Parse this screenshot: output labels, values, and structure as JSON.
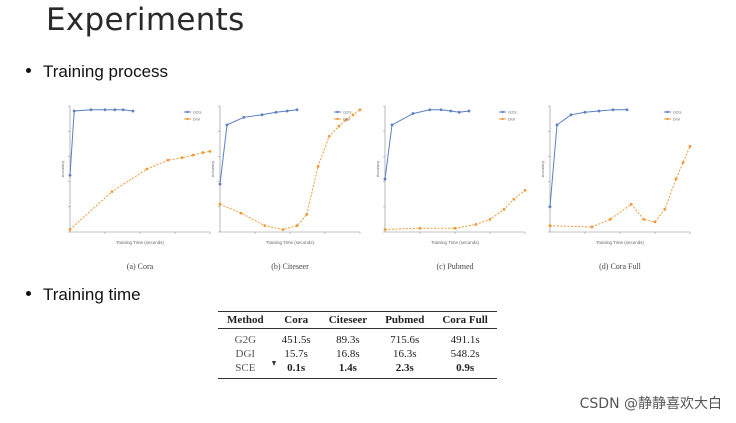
{
  "slide": {
    "title": "Experiments",
    "bullet_process": "Training process",
    "bullet_time": "Training time"
  },
  "colors": {
    "series_a": "#5b7fc0",
    "series_b": "#ee9a3a"
  },
  "legend": {
    "entry_a": "G2G",
    "entry_b": "DGI"
  },
  "chart_data": [
    {
      "type": "line",
      "title": "(a) Cora",
      "xlabel": "Training Time (seconds)",
      "ylabel": "Accuracy",
      "ylim": [
        0,
        1
      ],
      "series": [
        {
          "name": "G2G",
          "x": [
            0.0,
            0.03,
            0.15,
            0.25,
            0.32,
            0.38,
            0.45
          ],
          "values": [
            0.45,
            0.96,
            0.97,
            0.97,
            0.97,
            0.97,
            0.96
          ]
        },
        {
          "name": "DGI",
          "x": [
            0.0,
            0.3,
            0.55,
            0.7,
            0.8,
            0.88,
            0.95,
            1.0
          ],
          "values": [
            0.02,
            0.32,
            0.5,
            0.57,
            0.59,
            0.61,
            0.63,
            0.64
          ]
        }
      ]
    },
    {
      "type": "line",
      "title": "(b) Citeseer",
      "xlabel": "Training Time (seconds)",
      "ylabel": "Accuracy",
      "ylim": [
        0,
        1
      ],
      "series": [
        {
          "name": "G2G",
          "x": [
            0.0,
            0.05,
            0.17,
            0.3,
            0.4,
            0.48,
            0.55
          ],
          "values": [
            0.38,
            0.85,
            0.91,
            0.93,
            0.95,
            0.96,
            0.97
          ]
        },
        {
          "name": "DGI",
          "x": [
            0.0,
            0.15,
            0.32,
            0.45,
            0.55,
            0.62,
            0.7,
            0.78,
            0.85,
            0.9,
            0.95,
            1.0
          ],
          "values": [
            0.22,
            0.15,
            0.05,
            0.02,
            0.05,
            0.14,
            0.52,
            0.76,
            0.84,
            0.89,
            0.93,
            0.97
          ]
        }
      ]
    },
    {
      "type": "line",
      "title": "(c) Pubmed",
      "xlabel": "Training Time (seconds)",
      "ylabel": "Accuracy",
      "ylim": [
        0,
        1
      ],
      "series": [
        {
          "name": "G2G",
          "x": [
            0.0,
            0.05,
            0.2,
            0.32,
            0.4,
            0.47,
            0.53,
            0.6
          ],
          "values": [
            0.42,
            0.85,
            0.94,
            0.97,
            0.97,
            0.96,
            0.95,
            0.96
          ]
        },
        {
          "name": "DGI",
          "x": [
            0.0,
            0.25,
            0.5,
            0.65,
            0.75,
            0.85,
            0.92,
            1.0
          ],
          "values": [
            0.02,
            0.03,
            0.03,
            0.06,
            0.1,
            0.18,
            0.26,
            0.33
          ]
        }
      ]
    },
    {
      "type": "line",
      "title": "(d) Cora Full",
      "xlabel": "Training Time (seconds)",
      "ylabel": "Accuracy",
      "ylim": [
        0,
        1
      ],
      "series": [
        {
          "name": "G2G",
          "x": [
            0.0,
            0.05,
            0.15,
            0.25,
            0.35,
            0.45,
            0.55
          ],
          "values": [
            0.2,
            0.85,
            0.93,
            0.95,
            0.96,
            0.97,
            0.97
          ]
        },
        {
          "name": "DGI",
          "x": [
            0.0,
            0.3,
            0.43,
            0.58,
            0.67,
            0.75,
            0.82,
            0.9,
            0.95,
            1.0
          ],
          "values": [
            0.05,
            0.04,
            0.1,
            0.22,
            0.1,
            0.08,
            0.18,
            0.42,
            0.55,
            0.68
          ]
        }
      ]
    }
  ],
  "table": {
    "headers": [
      "Method",
      "Cora",
      "Citeseer",
      "Pubmed",
      "Cora Full"
    ],
    "rows": [
      [
        "G2G",
        "451.5s",
        "89.3s",
        "715.6s",
        "491.1s"
      ],
      [
        "DGI",
        "15.7s",
        "16.8s",
        "16.3s",
        "548.2s"
      ],
      [
        "SCE",
        "0.1s",
        "1.4s",
        "2.3s",
        "0.9s"
      ]
    ]
  },
  "watermark": "CSDN @静静喜欢大白"
}
